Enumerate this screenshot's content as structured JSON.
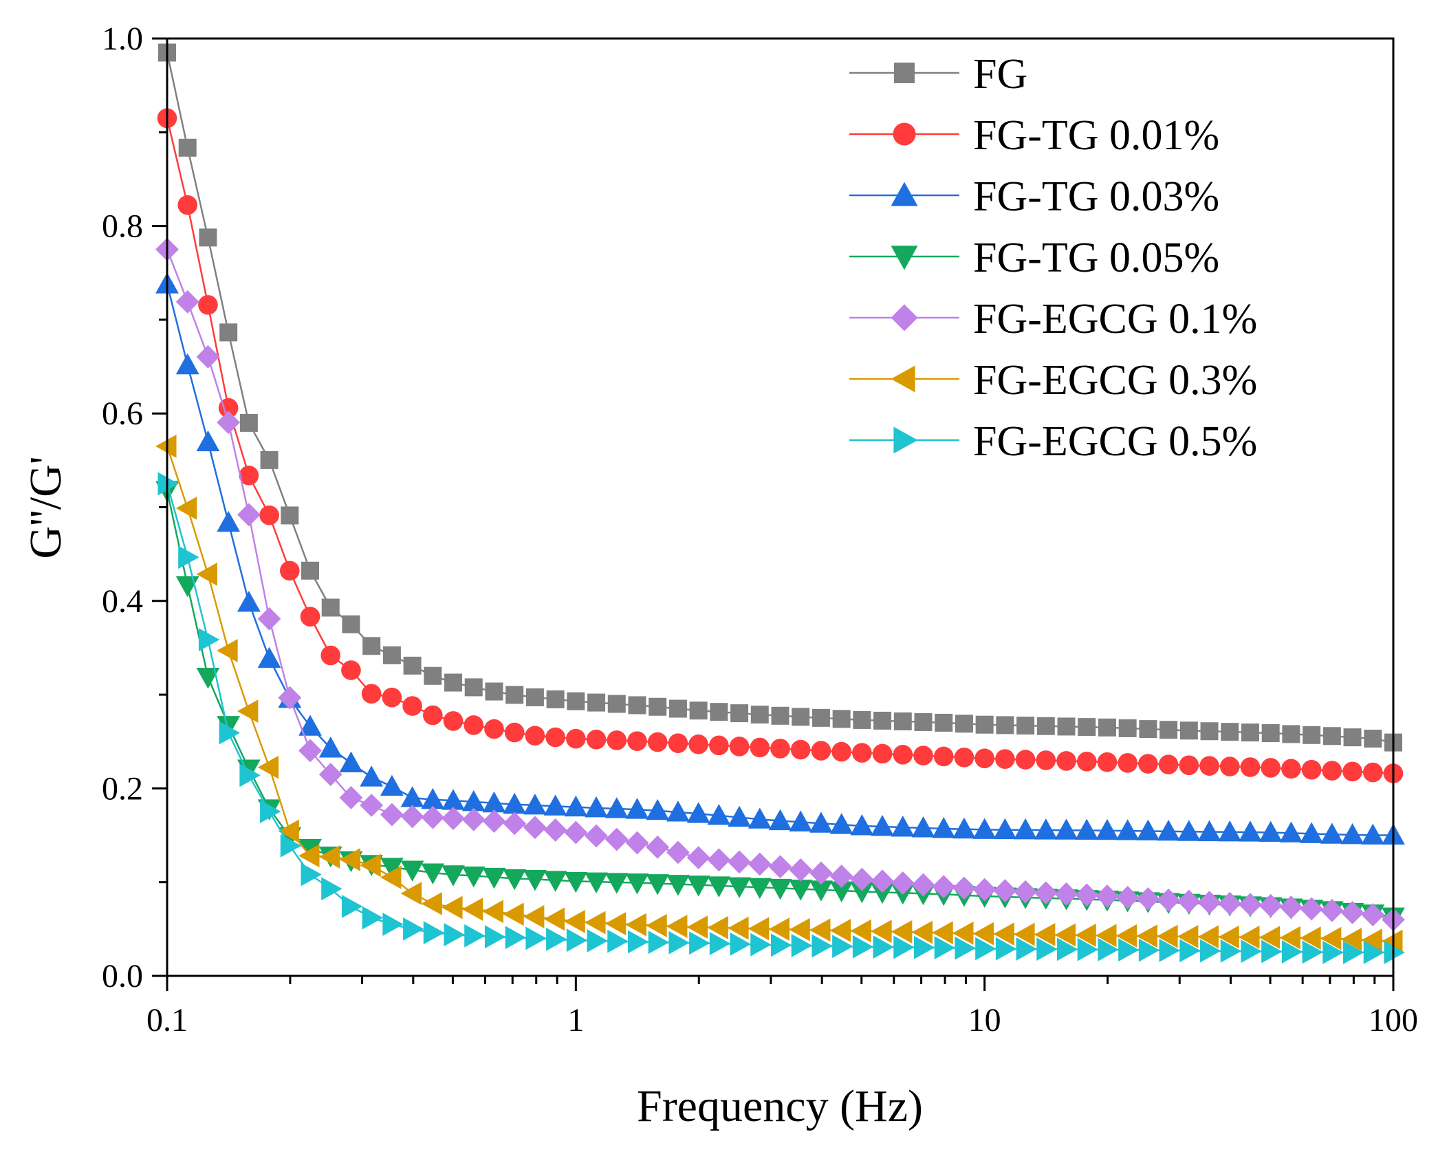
{
  "chart_data": {
    "type": "line",
    "title": "",
    "xlabel": "Frequency (Hz)",
    "ylabel": "G''/G'",
    "xscale": "log",
    "xlim": [
      0.1,
      100
    ],
    "ylim": [
      0.0,
      1.0
    ],
    "xticks": [
      0.1,
      1,
      10,
      100
    ],
    "xtick_labels": [
      "0.1",
      "1",
      "10",
      "100"
    ],
    "yticks": [
      0.0,
      0.2,
      0.4,
      0.6,
      0.8,
      1.0
    ],
    "ytick_labels": [
      "0.0",
      "0.2",
      "0.4",
      "0.6",
      "0.8",
      "1.0"
    ],
    "grid": false,
    "legend_position": "top-right",
    "series": [
      {
        "name": "FG",
        "color": "#808080",
        "marker": "square",
        "points": [
          [
            0.1,
            0.985
          ],
          [
            0.112,
            0.885
          ],
          [
            0.126,
            0.787
          ],
          [
            0.141,
            0.688
          ],
          [
            0.158,
            0.591
          ],
          [
            0.178,
            0.55
          ],
          [
            0.2,
            0.49
          ],
          [
            0.224,
            0.432
          ],
          [
            0.251,
            0.393
          ],
          [
            0.282,
            0.375
          ],
          [
            0.316,
            0.352
          ],
          [
            0.355,
            0.342
          ],
          [
            0.398,
            0.331
          ],
          [
            0.447,
            0.32
          ],
          [
            0.5,
            0.313
          ],
          [
            0.6,
            0.305
          ],
          [
            0.7,
            0.3
          ],
          [
            0.8,
            0.297
          ],
          [
            1,
            0.293
          ],
          [
            1.5,
            0.288
          ],
          [
            2,
            0.283
          ],
          [
            3,
            0.278
          ],
          [
            5,
            0.273
          ],
          [
            8,
            0.27
          ],
          [
            10,
            0.268
          ],
          [
            20,
            0.265
          ],
          [
            30,
            0.262
          ],
          [
            50,
            0.259
          ],
          [
            70,
            0.256
          ],
          [
            90,
            0.253
          ],
          [
            100,
            0.249
          ]
        ]
      },
      {
        "name": "FG-TG 0.01%",
        "color": "#ff3b3b",
        "marker": "circle",
        "points": [
          [
            0.1,
            0.915
          ],
          [
            0.112,
            0.824
          ],
          [
            0.126,
            0.715
          ],
          [
            0.141,
            0.607
          ],
          [
            0.158,
            0.535
          ],
          [
            0.178,
            0.491
          ],
          [
            0.2,
            0.431
          ],
          [
            0.224,
            0.383
          ],
          [
            0.251,
            0.342
          ],
          [
            0.282,
            0.326
          ],
          [
            0.316,
            0.301
          ],
          [
            0.355,
            0.297
          ],
          [
            0.398,
            0.288
          ],
          [
            0.447,
            0.278
          ],
          [
            0.5,
            0.272
          ],
          [
            0.6,
            0.265
          ],
          [
            0.7,
            0.26
          ],
          [
            0.8,
            0.256
          ],
          [
            1,
            0.253
          ],
          [
            1.5,
            0.25
          ],
          [
            2,
            0.247
          ],
          [
            3,
            0.243
          ],
          [
            5,
            0.238
          ],
          [
            8,
            0.234
          ],
          [
            10,
            0.232
          ],
          [
            20,
            0.228
          ],
          [
            30,
            0.225
          ],
          [
            50,
            0.222
          ],
          [
            70,
            0.219
          ],
          [
            90,
            0.217
          ],
          [
            100,
            0.216
          ]
        ]
      },
      {
        "name": "FG-TG 0.03%",
        "color": "#1f6fe0",
        "marker": "triangle-up",
        "points": [
          [
            0.1,
            0.738
          ],
          [
            0.112,
            0.653
          ],
          [
            0.126,
            0.569
          ],
          [
            0.141,
            0.485
          ],
          [
            0.158,
            0.4
          ],
          [
            0.178,
            0.338
          ],
          [
            0.2,
            0.295
          ],
          [
            0.224,
            0.266
          ],
          [
            0.251,
            0.243
          ],
          [
            0.282,
            0.227
          ],
          [
            0.316,
            0.212
          ],
          [
            0.355,
            0.202
          ],
          [
            0.398,
            0.19
          ],
          [
            0.447,
            0.188
          ],
          [
            0.5,
            0.187
          ],
          [
            0.6,
            0.185
          ],
          [
            0.7,
            0.183
          ],
          [
            0.8,
            0.182
          ],
          [
            1,
            0.18
          ],
          [
            1.5,
            0.177
          ],
          [
            2,
            0.173
          ],
          [
            3,
            0.166
          ],
          [
            5,
            0.16
          ],
          [
            8,
            0.157
          ],
          [
            10,
            0.156
          ],
          [
            20,
            0.155
          ],
          [
            30,
            0.154
          ],
          [
            50,
            0.153
          ],
          [
            70,
            0.151
          ],
          [
            90,
            0.15
          ],
          [
            100,
            0.15
          ]
        ]
      },
      {
        "name": "FG-TG 0.05%",
        "color": "#14a85c",
        "marker": "triangle-down",
        "points": [
          [
            0.1,
            0.518
          ],
          [
            0.112,
            0.418
          ],
          [
            0.126,
            0.318
          ],
          [
            0.141,
            0.268
          ],
          [
            0.158,
            0.222
          ],
          [
            0.178,
            0.178
          ],
          [
            0.2,
            0.148
          ],
          [
            0.224,
            0.136
          ],
          [
            0.251,
            0.128
          ],
          [
            0.282,
            0.123
          ],
          [
            0.316,
            0.119
          ],
          [
            0.355,
            0.116
          ],
          [
            0.398,
            0.113
          ],
          [
            0.447,
            0.11
          ],
          [
            0.5,
            0.108
          ],
          [
            0.6,
            0.106
          ],
          [
            0.7,
            0.104
          ],
          [
            0.8,
            0.103
          ],
          [
            1,
            0.101
          ],
          [
            1.5,
            0.099
          ],
          [
            2,
            0.097
          ],
          [
            3,
            0.094
          ],
          [
            5,
            0.09
          ],
          [
            8,
            0.087
          ],
          [
            10,
            0.085
          ],
          [
            20,
            0.081
          ],
          [
            30,
            0.078
          ],
          [
            50,
            0.074
          ],
          [
            70,
            0.07
          ],
          [
            90,
            0.066
          ],
          [
            100,
            0.063
          ]
        ]
      },
      {
        "name": "FG-EGCG 0.1%",
        "color": "#c081e8",
        "marker": "diamond",
        "points": [
          [
            0.1,
            0.775
          ],
          [
            0.112,
            0.72
          ],
          [
            0.126,
            0.66
          ],
          [
            0.141,
            0.592
          ],
          [
            0.158,
            0.495
          ],
          [
            0.178,
            0.38
          ],
          [
            0.2,
            0.295
          ],
          [
            0.224,
            0.24
          ],
          [
            0.251,
            0.215
          ],
          [
            0.282,
            0.19
          ],
          [
            0.316,
            0.182
          ],
          [
            0.355,
            0.172
          ],
          [
            0.398,
            0.17
          ],
          [
            0.447,
            0.169
          ],
          [
            0.5,
            0.168
          ],
          [
            0.6,
            0.166
          ],
          [
            0.7,
            0.163
          ],
          [
            0.8,
            0.158
          ],
          [
            1,
            0.153
          ],
          [
            1.5,
            0.14
          ],
          [
            2,
            0.126
          ],
          [
            3,
            0.118
          ],
          [
            5,
            0.103
          ],
          [
            8,
            0.095
          ],
          [
            10,
            0.092
          ],
          [
            20,
            0.085
          ],
          [
            30,
            0.08
          ],
          [
            50,
            0.075
          ],
          [
            70,
            0.07
          ],
          [
            90,
            0.065
          ],
          [
            100,
            0.06
          ]
        ]
      },
      {
        "name": "FG-EGCG 0.3%",
        "color": "#d99a00",
        "marker": "triangle-left",
        "points": [
          [
            0.1,
            0.565
          ],
          [
            0.112,
            0.5
          ],
          [
            0.126,
            0.428
          ],
          [
            0.141,
            0.348
          ],
          [
            0.158,
            0.284
          ],
          [
            0.178,
            0.222
          ],
          [
            0.2,
            0.153
          ],
          [
            0.224,
            0.128
          ],
          [
            0.251,
            0.127
          ],
          [
            0.282,
            0.124
          ],
          [
            0.316,
            0.118
          ],
          [
            0.355,
            0.105
          ],
          [
            0.398,
            0.088
          ],
          [
            0.447,
            0.077
          ],
          [
            0.5,
            0.073
          ],
          [
            0.6,
            0.07
          ],
          [
            0.7,
            0.066
          ],
          [
            0.8,
            0.063
          ],
          [
            1,
            0.058
          ],
          [
            1.5,
            0.054
          ],
          [
            2,
            0.052
          ],
          [
            3,
            0.05
          ],
          [
            5,
            0.048
          ],
          [
            8,
            0.046
          ],
          [
            10,
            0.045
          ],
          [
            20,
            0.043
          ],
          [
            30,
            0.042
          ],
          [
            50,
            0.041
          ],
          [
            70,
            0.04
          ],
          [
            90,
            0.038
          ],
          [
            100,
            0.037
          ]
        ]
      },
      {
        "name": "FG-EGCG 0.5%",
        "color": "#1ec4d1",
        "marker": "triangle-right",
        "points": [
          [
            0.1,
            0.525
          ],
          [
            0.112,
            0.448
          ],
          [
            0.126,
            0.358
          ],
          [
            0.141,
            0.26
          ],
          [
            0.158,
            0.215
          ],
          [
            0.178,
            0.175
          ],
          [
            0.2,
            0.138
          ],
          [
            0.224,
            0.108
          ],
          [
            0.251,
            0.093
          ],
          [
            0.282,
            0.074
          ],
          [
            0.316,
            0.062
          ],
          [
            0.355,
            0.055
          ],
          [
            0.398,
            0.05
          ],
          [
            0.447,
            0.046
          ],
          [
            0.5,
            0.044
          ],
          [
            0.6,
            0.042
          ],
          [
            0.7,
            0.041
          ],
          [
            0.8,
            0.04
          ],
          [
            1,
            0.038
          ],
          [
            1.5,
            0.036
          ],
          [
            2,
            0.035
          ],
          [
            3,
            0.033
          ],
          [
            5,
            0.031
          ],
          [
            8,
            0.03
          ],
          [
            10,
            0.029
          ],
          [
            20,
            0.028
          ],
          [
            30,
            0.027
          ],
          [
            50,
            0.026
          ],
          [
            70,
            0.025
          ],
          [
            90,
            0.025
          ],
          [
            100,
            0.025
          ]
        ]
      }
    ]
  }
}
